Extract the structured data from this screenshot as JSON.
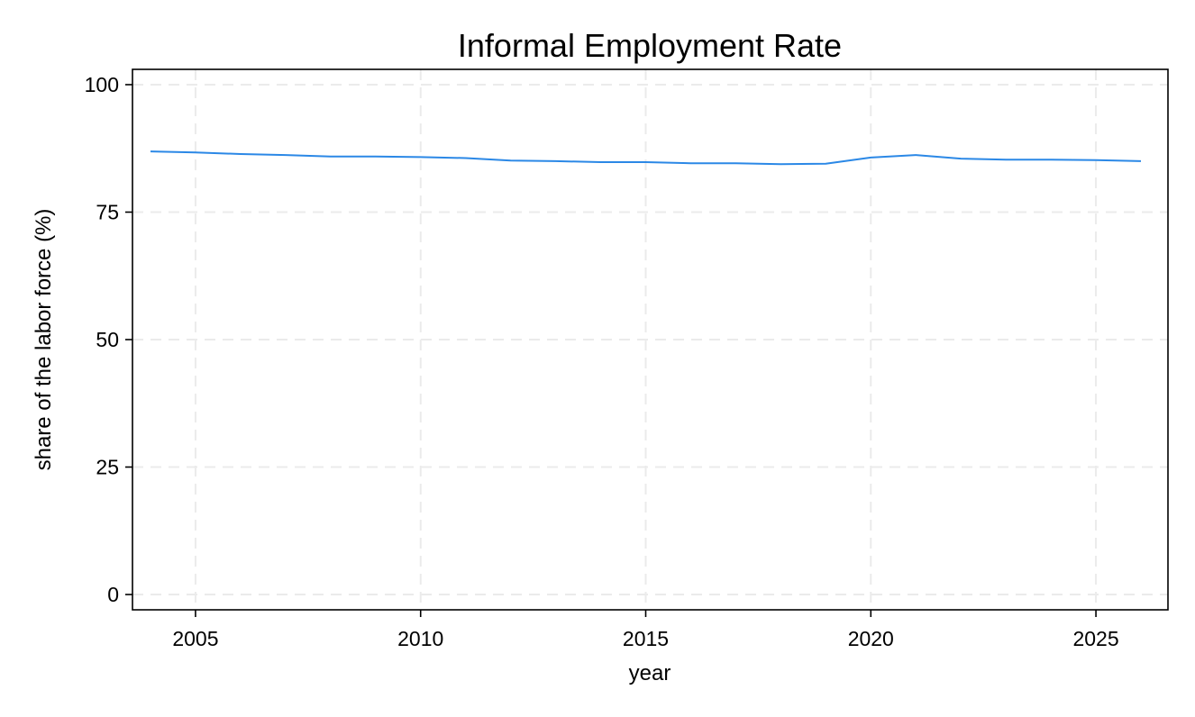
{
  "chart_data": {
    "type": "line",
    "title": "Informal Employment Rate",
    "xlabel": "year",
    "ylabel": "share of the labor force (%)",
    "xlim": [
      2003.6,
      2026.6
    ],
    "ylim": [
      -3,
      103
    ],
    "xticks": [
      2005,
      2010,
      2015,
      2020,
      2025
    ],
    "yticks": [
      0,
      25,
      50,
      75,
      100
    ],
    "grid": true,
    "legend": "none",
    "series": [
      {
        "color": "#2b88e6",
        "x": [
          2004,
          2005,
          2006,
          2007,
          2008,
          2009,
          2010,
          2011,
          2012,
          2013,
          2014,
          2015,
          2016,
          2017,
          2018,
          2019,
          2020,
          2021,
          2022,
          2023,
          2024,
          2025,
          2026
        ],
        "y": [
          86.9,
          86.7,
          86.4,
          86.2,
          85.9,
          85.9,
          85.8,
          85.6,
          85.1,
          85.0,
          84.8,
          84.8,
          84.6,
          84.6,
          84.4,
          84.5,
          85.7,
          86.2,
          85.5,
          85.3,
          85.3,
          85.2,
          85.0
        ]
      }
    ]
  }
}
